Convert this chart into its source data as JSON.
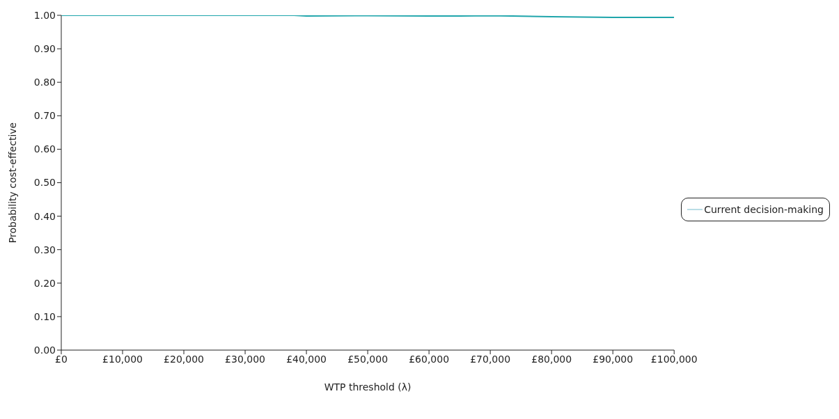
{
  "chart_data": {
    "type": "line",
    "xlabel": "WTP threshold (λ)",
    "ylabel": "Probability cost-effective",
    "x": [
      0,
      10000,
      20000,
      30000,
      38000,
      40000,
      50000,
      60000,
      65000,
      70000,
      80000,
      90000,
      100000
    ],
    "series": [
      {
        "color": "#1fa5ab",
        "values": [
          1.0,
          1.0,
          1.0,
          1.0,
          1.0,
          0.998,
          0.999,
          0.998,
          0.998,
          0.999,
          0.996,
          0.994,
          0.994
        ]
      },
      {
        "name": "Current decision-making",
        "color": "#b9dde6",
        "values": [
          null,
          null,
          null,
          null,
          null,
          null,
          null,
          null,
          null,
          null,
          null,
          null,
          null
        ]
      }
    ],
    "xlim": [
      0,
      100000
    ],
    "ylim": [
      0,
      1
    ],
    "xticks": [
      {
        "value": 0,
        "label": "£0"
      },
      {
        "value": 10000,
        "label": "£10,000"
      },
      {
        "value": 20000,
        "label": "£20,000"
      },
      {
        "value": 30000,
        "label": "£30,000"
      },
      {
        "value": 40000,
        "label": "£40,000"
      },
      {
        "value": 50000,
        "label": "£50,000"
      },
      {
        "value": 60000,
        "label": "£60,000"
      },
      {
        "value": 70000,
        "label": "£70,000"
      },
      {
        "value": 80000,
        "label": "£80,000"
      },
      {
        "value": 90000,
        "label": "£90,000"
      },
      {
        "value": 100000,
        "label": "£100,000"
      }
    ],
    "yticks": [
      {
        "value": 0,
        "label": "0.00"
      },
      {
        "value": 0.1,
        "label": "0.10"
      },
      {
        "value": 0.2,
        "label": "0.20"
      },
      {
        "value": 0.3,
        "label": "0.30"
      },
      {
        "value": 0.4,
        "label": "0.40"
      },
      {
        "value": 0.5,
        "label": "0.50"
      },
      {
        "value": 0.6,
        "label": "0.60"
      },
      {
        "value": 0.7,
        "label": "0.70"
      },
      {
        "value": 0.8,
        "label": "0.80"
      },
      {
        "value": 0.9,
        "label": "0.90"
      },
      {
        "value": 1,
        "label": "1.00"
      }
    ],
    "grid": false,
    "legend": "right",
    "marker": "none",
    "line_style": "solid"
  }
}
